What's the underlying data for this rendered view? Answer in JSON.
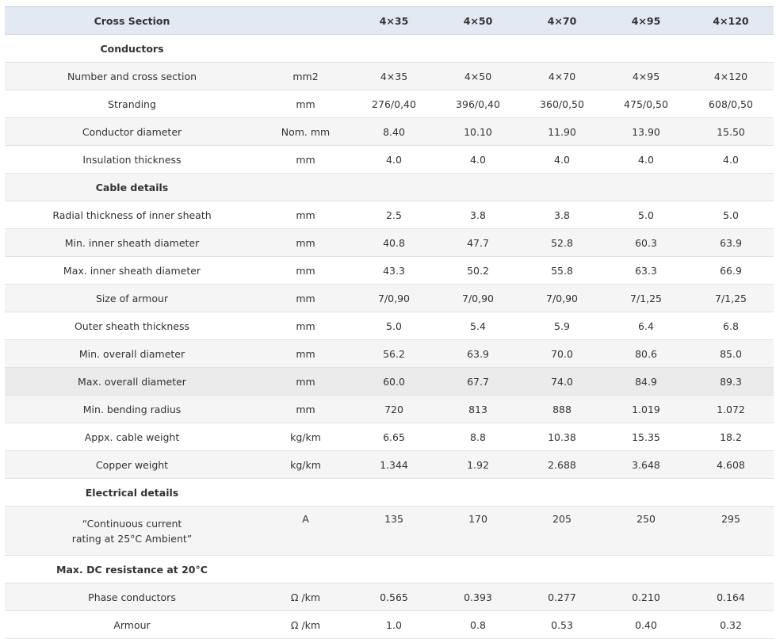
{
  "header": {
    "col0": "Cross Section",
    "col1": "",
    "col2": "4×35",
    "col3": "4×50",
    "col4": "4×70",
    "col5": "4×95",
    "col6": "4×120"
  },
  "rows": [
    {
      "label": "Conductors",
      "unit": "",
      "v": [
        "",
        "",
        "",
        "",
        ""
      ]
    },
    {
      "label": "Number and cross section",
      "unit": "mm2",
      "v": [
        "4×35",
        "4×50",
        "4×70",
        "4×95",
        "4×120"
      ]
    },
    {
      "label": "Stranding",
      "unit": "mm",
      "v": [
        "276/0,40",
        "396/0,40",
        "360/0,50",
        "475/0,50",
        "608/0,50"
      ]
    },
    {
      "label": "Conductor diameter",
      "unit": "Nom. mm",
      "v": [
        "8.40",
        "10.10",
        "11.90",
        "13.90",
        "15.50"
      ]
    },
    {
      "label": "Insulation thickness",
      "unit": "mm",
      "v": [
        "4.0",
        "4.0",
        "4.0",
        "4.0",
        "4.0"
      ]
    },
    {
      "label": "Cable details",
      "unit": "",
      "v": [
        "",
        "",
        "",
        "",
        ""
      ]
    },
    {
      "label": "Radial thickness of inner sheath",
      "unit": "mm",
      "v": [
        "2.5",
        "3.8",
        "3.8",
        "5.0",
        "5.0"
      ]
    },
    {
      "label": "Min. inner sheath diameter",
      "unit": "mm",
      "v": [
        "40.8",
        "47.7",
        "52.8",
        "60.3",
        "63.9"
      ]
    },
    {
      "label": "Max. inner sheath diameter",
      "unit": "mm",
      "v": [
        "43.3",
        "50.2",
        "55.8",
        "63.3",
        "66.9"
      ]
    },
    {
      "label": "Size of armour",
      "unit": "mm",
      "v": [
        "7/0,90",
        "7/0,90",
        "7/0,90",
        "7/1,25",
        "7/1,25"
      ]
    },
    {
      "label": "Outer sheath thickness",
      "unit": "mm",
      "v": [
        "5.0",
        "5.4",
        "5.9",
        "6.4",
        "6.8"
      ]
    },
    {
      "label": "Min. overall diameter",
      "unit": "mm",
      "v": [
        "56.2",
        "63.9",
        "70.0",
        "80.6",
        "85.0"
      ]
    },
    {
      "label": "Max. overall diameter",
      "unit": "mm",
      "v": [
        "60.0",
        "67.7",
        "74.0",
        "84.9",
        "89.3"
      ]
    },
    {
      "label": "Min. bending radius",
      "unit": "mm",
      "v": [
        "720",
        "813",
        "888",
        "1.019",
        "1.072"
      ]
    },
    {
      "label": "Appx. cable weight",
      "unit": "kg/km",
      "v": [
        "6.65",
        "8.8",
        "10.38",
        "15.35",
        "18.2"
      ]
    },
    {
      "label": "Copper weight",
      "unit": "kg/km",
      "v": [
        "1.344",
        "1.92",
        "2.688",
        "3.648",
        "4.608"
      ]
    },
    {
      "label": "Electrical details",
      "unit": "",
      "v": [
        "",
        "",
        "",
        "",
        ""
      ]
    },
    {
      "label": "“Continuous current",
      "label2": "rating at 25°C Ambient”",
      "unit": "A",
      "v": [
        "135",
        "170",
        "205",
        "250",
        "295"
      ]
    },
    {
      "label": "Max. DC resistance at 20°C",
      "unit": "",
      "v": [
        "",
        "",
        "",
        "",
        ""
      ]
    },
    {
      "label": "Phase conductors",
      "unit": "Ω /km",
      "v": [
        "0.565",
        "0.393",
        "0.277",
        "0.210",
        "0.164"
      ]
    },
    {
      "label": "Armour",
      "unit": "Ω /km",
      "v": [
        "1.0",
        "0.8",
        "0.53",
        "0.40",
        "0.32"
      ]
    }
  ]
}
